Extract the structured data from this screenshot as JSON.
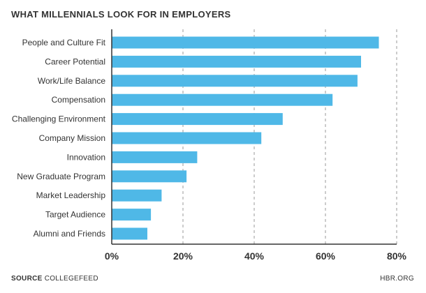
{
  "title": "WHAT MILLENNIALS LOOK FOR IN EMPLOYERS",
  "footer": {
    "source_label": "SOURCE",
    "source_name": "COLLEGEFEED",
    "credit": "HBR.ORG"
  },
  "colors": {
    "bar": "#4fb8e7",
    "grid": "#999999",
    "axis": "#333333"
  },
  "chart_data": {
    "type": "bar",
    "orientation": "horizontal",
    "title": "WHAT MILLENNIALS LOOK FOR IN EMPLOYERS",
    "categories": [
      "People and Culture Fit",
      "Career Potential",
      "Work/Life Balance",
      "Compensation",
      "Challenging Environment",
      "Company Mission",
      "Innovation",
      "New Graduate Program",
      "Market Leadership",
      "Target Audience",
      "Alumni and Friends"
    ],
    "values": [
      75,
      70,
      69,
      62,
      48,
      42,
      24,
      21,
      14,
      11,
      10
    ],
    "xlim": [
      0,
      80
    ],
    "ticks": [
      0,
      20,
      40,
      60,
      80
    ],
    "tick_labels": [
      "0%",
      "20%",
      "40%",
      "60%",
      "80%"
    ],
    "grid": true,
    "grid_style": "dashed-vertical"
  }
}
